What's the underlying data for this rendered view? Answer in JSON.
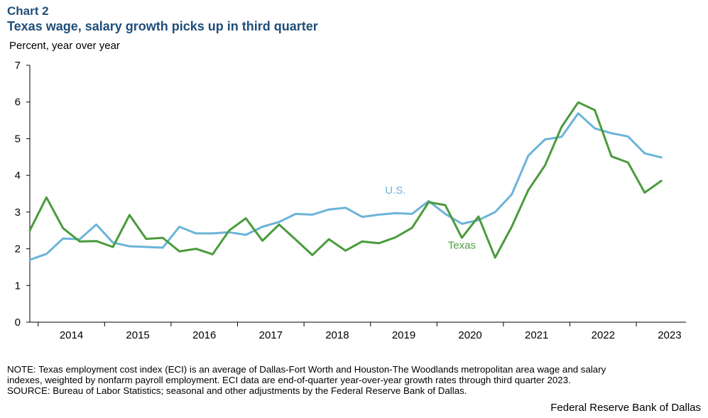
{
  "header": {
    "chart_number": "Chart 2",
    "title": "Texas wage, salary growth picks up in third quarter",
    "unit_label": "Percent, year over year"
  },
  "chart_data": {
    "type": "line",
    "title": "Texas wage, salary growth picks up in third quarter",
    "ylabel": "Percent, year over year",
    "xlabel": "",
    "ylim": [
      0,
      7
    ],
    "yticks": [
      "0",
      "1",
      "2",
      "3",
      "4",
      "5",
      "6",
      "7"
    ],
    "x_start": "2013 Q4",
    "frequency": "quarterly",
    "year_labels": [
      "2014",
      "2015",
      "2016",
      "2017",
      "2018",
      "2019",
      "2020",
      "2021",
      "2022",
      "2023"
    ],
    "grid": false,
    "series": [
      {
        "name": "U.S.",
        "color": "#6ab4d8",
        "values": [
          1.7,
          1.86,
          2.28,
          2.26,
          2.66,
          2.17,
          2.07,
          2.05,
          2.03,
          2.6,
          2.42,
          2.42,
          2.45,
          2.38,
          2.6,
          2.73,
          2.95,
          2.93,
          3.07,
          3.12,
          2.87,
          2.93,
          2.97,
          2.95,
          3.3,
          2.95,
          2.68,
          2.78,
          3.0,
          3.48,
          4.54,
          4.98,
          5.05,
          5.69,
          5.28,
          5.15,
          5.06,
          4.6,
          4.49
        ]
      },
      {
        "name": "Texas",
        "color": "#4a9b3c",
        "values": [
          2.5,
          3.4,
          2.56,
          2.2,
          2.21,
          2.05,
          2.92,
          2.27,
          2.3,
          1.93,
          2.0,
          1.85,
          2.5,
          2.83,
          2.22,
          2.66,
          2.25,
          1.83,
          2.26,
          1.95,
          2.2,
          2.15,
          2.31,
          2.57,
          3.27,
          3.19,
          2.3,
          2.88,
          1.76,
          2.6,
          3.6,
          4.27,
          5.32,
          5.99,
          5.78,
          4.52,
          4.35,
          3.53,
          3.85
        ]
      }
    ],
    "annotations": [
      {
        "text": "U.S.",
        "color": "#6ab4d8",
        "x": "2019 Q2",
        "y": 3.5
      },
      {
        "text": "Texas",
        "color": "#4a9b3c",
        "x": "2020 Q2",
        "y": 2.0
      }
    ]
  },
  "footer": {
    "note_line1": "NOTE: Texas employment cost index (ECI) is an average of Dallas-Fort Worth and Houston-The Woodlands metropolitan area wage and salary",
    "note_line2": "indexes, weighted by nonfarm payroll employment. ECI data are end-of-quarter year-over-year growth rates through third quarter 2023.",
    "source": "SOURCE: Bureau of Labor Statistics; seasonal and other adjustments by the Federal Reserve Bank of Dallas.",
    "credit": "Federal Reserve Bank of Dallas"
  }
}
